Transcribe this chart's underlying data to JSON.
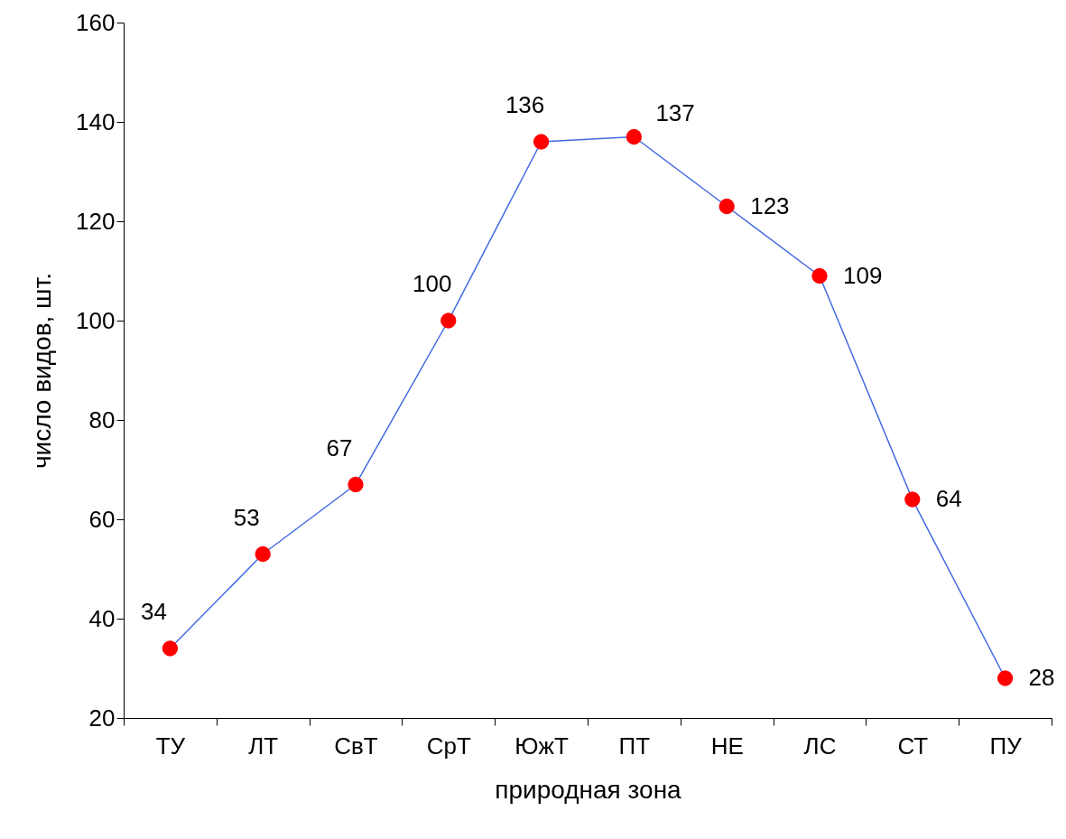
{
  "chart_data": {
    "type": "line",
    "xlabel": "природная зона",
    "ylabel": "число видов, шт.",
    "categories": [
      "ТУ",
      "ЛТ",
      "СвТ",
      "СрТ",
      "ЮжТ",
      "ПТ",
      "НЕ",
      "ЛС",
      "СТ",
      "ПУ"
    ],
    "series": [
      {
        "color": "#4169e1",
        "colors": [
          "#ff0000",
          "#ff0000",
          "#ff0000",
          "#ff0000",
          "#ff0000",
          "#ff0000",
          "#ff0000",
          "#ff0000",
          "#ff0000",
          "#ff0000"
        ],
        "values": [
          34,
          53,
          67,
          100,
          136,
          137,
          123,
          109,
          64,
          28
        ]
      }
    ],
    "marker": "circle",
    "data_labels": true,
    "ylim": [
      20,
      160
    ],
    "yticks": [
      20,
      40,
      60,
      80,
      100,
      120,
      140,
      160
    ],
    "grid": false
  }
}
